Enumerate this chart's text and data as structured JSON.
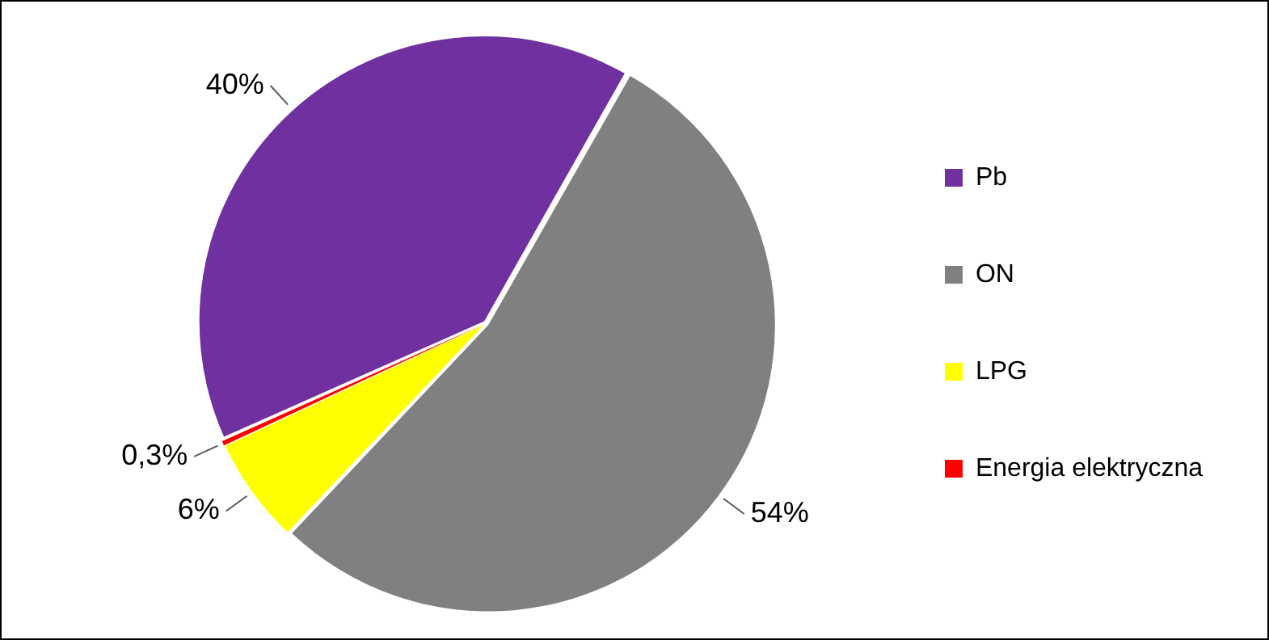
{
  "chart_data": {
    "type": "pie",
    "categories": [
      "Pb",
      "ON",
      "LPG",
      "Energia elektryczna"
    ],
    "values": [
      40,
      54,
      6,
      0.3
    ],
    "colors": [
      "#7030a0",
      "#808080",
      "#ffff00",
      "#ff0000"
    ],
    "value_labels": [
      "40%",
      "54%",
      "6%",
      "0,3%"
    ],
    "legend": "right"
  }
}
